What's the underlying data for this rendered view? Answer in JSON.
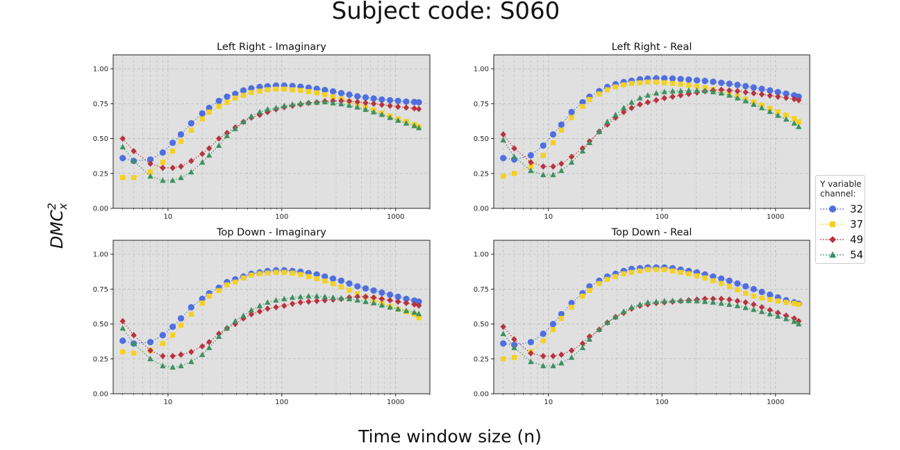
{
  "figure": {
    "title": "Subject code: S060",
    "xlabel": "Time window size (n)",
    "ylabel": "DMC",
    "ylabel_sup": "2",
    "ylabel_sub": "x"
  },
  "legend": {
    "title_line1": "Y variable",
    "title_line2": "channel:",
    "entries": [
      "32",
      "37",
      "49",
      "54"
    ]
  },
  "colors": {
    "s32": "#4f6fe0",
    "s37": "#f5d020",
    "s49": "#b8333f",
    "s54": "#3d9060",
    "panel_bg": "#e0e0e0",
    "grid": "#bdbdbd"
  },
  "chart_data": [
    {
      "type": "scatter",
      "title": "Left Right - Imaginary",
      "xscale": "log",
      "xlim": [
        3.3,
        2000
      ],
      "ylim": [
        0,
        1.1
      ],
      "yticks": [
        "0.00",
        "0.25",
        "0.50",
        "0.75",
        "1.00"
      ],
      "xticks": [
        "10",
        "100",
        "1000"
      ],
      "x": [
        4,
        5,
        7,
        9,
        11,
        13,
        16,
        20,
        23,
        28,
        33,
        39,
        46,
        54,
        64,
        75,
        89,
        105,
        124,
        146,
        172,
        203,
        239,
        282,
        333,
        392,
        462,
        545,
        642,
        757,
        893,
        1050,
        1240,
        1460,
        1600
      ],
      "series": [
        {
          "name": "32",
          "values": [
            0.36,
            0.34,
            0.35,
            0.4,
            0.47,
            0.53,
            0.61,
            0.68,
            0.72,
            0.77,
            0.8,
            0.82,
            0.845,
            0.86,
            0.87,
            0.875,
            0.88,
            0.88,
            0.877,
            0.872,
            0.865,
            0.857,
            0.848,
            0.838,
            0.826,
            0.815,
            0.803,
            0.795,
            0.787,
            0.78,
            0.775,
            0.77,
            0.765,
            0.762,
            0.76
          ]
        },
        {
          "name": "37",
          "values": [
            0.22,
            0.22,
            0.26,
            0.33,
            0.41,
            0.48,
            0.56,
            0.64,
            0.69,
            0.73,
            0.76,
            0.79,
            0.81,
            0.83,
            0.84,
            0.85,
            0.855,
            0.855,
            0.85,
            0.845,
            0.837,
            0.828,
            0.815,
            0.8,
            0.785,
            0.767,
            0.748,
            0.726,
            0.705,
            0.683,
            0.662,
            0.641,
            0.622,
            0.6,
            0.585
          ]
        },
        {
          "name": "49",
          "values": [
            0.5,
            0.41,
            0.32,
            0.29,
            0.29,
            0.3,
            0.34,
            0.39,
            0.43,
            0.5,
            0.54,
            0.58,
            0.62,
            0.65,
            0.67,
            0.69,
            0.71,
            0.725,
            0.735,
            0.745,
            0.755,
            0.76,
            0.768,
            0.77,
            0.77,
            0.768,
            0.763,
            0.756,
            0.75,
            0.742,
            0.735,
            0.728,
            0.722,
            0.716,
            0.712
          ]
        },
        {
          "name": "54",
          "values": [
            0.44,
            0.34,
            0.23,
            0.2,
            0.2,
            0.22,
            0.26,
            0.33,
            0.38,
            0.45,
            0.52,
            0.57,
            0.62,
            0.66,
            0.69,
            0.71,
            0.72,
            0.735,
            0.745,
            0.752,
            0.757,
            0.76,
            0.762,
            0.755,
            0.748,
            0.738,
            0.725,
            0.708,
            0.69,
            0.672,
            0.65,
            0.63,
            0.61,
            0.592,
            0.577
          ]
        }
      ]
    },
    {
      "type": "scatter",
      "title": "Left Right - Real",
      "xscale": "log",
      "xlim": [
        3.3,
        2000
      ],
      "ylim": [
        0,
        1.1
      ],
      "yticks": [
        "0.00",
        "0.25",
        "0.50",
        "0.75",
        "1.00"
      ],
      "xticks": [
        "10",
        "100",
        "1000"
      ],
      "x": [
        4,
        5,
        7,
        9,
        11,
        13,
        16,
        20,
        23,
        28,
        33,
        39,
        46,
        54,
        64,
        75,
        89,
        105,
        124,
        146,
        172,
        203,
        239,
        282,
        333,
        392,
        462,
        545,
        642,
        757,
        893,
        1050,
        1240,
        1460,
        1600
      ],
      "series": [
        {
          "name": "32",
          "values": [
            0.36,
            0.35,
            0.38,
            0.45,
            0.53,
            0.6,
            0.69,
            0.76,
            0.8,
            0.84,
            0.87,
            0.89,
            0.905,
            0.915,
            0.925,
            0.93,
            0.932,
            0.932,
            0.93,
            0.927,
            0.923,
            0.918,
            0.913,
            0.907,
            0.9,
            0.893,
            0.885,
            0.876,
            0.866,
            0.856,
            0.845,
            0.833,
            0.822,
            0.81,
            0.8
          ]
        },
        {
          "name": "37",
          "values": [
            0.23,
            0.25,
            0.3,
            0.38,
            0.47,
            0.56,
            0.65,
            0.73,
            0.78,
            0.82,
            0.85,
            0.87,
            0.885,
            0.895,
            0.9,
            0.905,
            0.905,
            0.9,
            0.895,
            0.89,
            0.883,
            0.875,
            0.865,
            0.853,
            0.838,
            0.822,
            0.804,
            0.784,
            0.762,
            0.74,
            0.716,
            0.692,
            0.668,
            0.643,
            0.62
          ]
        },
        {
          "name": "49",
          "values": [
            0.53,
            0.43,
            0.33,
            0.3,
            0.3,
            0.32,
            0.37,
            0.43,
            0.48,
            0.55,
            0.6,
            0.65,
            0.69,
            0.72,
            0.745,
            0.76,
            0.775,
            0.79,
            0.8,
            0.81,
            0.82,
            0.83,
            0.84,
            0.845,
            0.85,
            0.845,
            0.84,
            0.832,
            0.825,
            0.817,
            0.808,
            0.8,
            0.792,
            0.783,
            0.775
          ]
        },
        {
          "name": "54",
          "values": [
            0.49,
            0.37,
            0.27,
            0.24,
            0.24,
            0.27,
            0.33,
            0.41,
            0.47,
            0.55,
            0.62,
            0.67,
            0.72,
            0.76,
            0.79,
            0.81,
            0.825,
            0.835,
            0.84,
            0.842,
            0.845,
            0.845,
            0.842,
            0.835,
            0.825,
            0.81,
            0.79,
            0.77,
            0.745,
            0.72,
            0.693,
            0.666,
            0.638,
            0.61,
            0.585
          ]
        }
      ]
    },
    {
      "type": "scatter",
      "title": "Top Down - Imaginary",
      "xscale": "log",
      "xlim": [
        3.3,
        2000
      ],
      "ylim": [
        0,
        1.1
      ],
      "yticks": [
        "0.00",
        "0.25",
        "0.50",
        "0.75",
        "1.00"
      ],
      "xticks": [
        "10",
        "100",
        "1000"
      ],
      "x": [
        4,
        5,
        7,
        9,
        11,
        13,
        16,
        20,
        23,
        28,
        33,
        39,
        46,
        54,
        64,
        75,
        89,
        105,
        124,
        146,
        172,
        203,
        239,
        282,
        333,
        392,
        462,
        545,
        642,
        757,
        893,
        1050,
        1240,
        1460,
        1600
      ],
      "series": [
        {
          "name": "32",
          "values": [
            0.38,
            0.36,
            0.37,
            0.42,
            0.48,
            0.54,
            0.62,
            0.68,
            0.72,
            0.76,
            0.8,
            0.82,
            0.84,
            0.86,
            0.87,
            0.88,
            0.885,
            0.885,
            0.88,
            0.875,
            0.865,
            0.855,
            0.84,
            0.825,
            0.81,
            0.79,
            0.77,
            0.755,
            0.74,
            0.725,
            0.71,
            0.695,
            0.68,
            0.668,
            0.66
          ]
        },
        {
          "name": "37",
          "values": [
            0.3,
            0.29,
            0.31,
            0.36,
            0.42,
            0.49,
            0.57,
            0.65,
            0.7,
            0.74,
            0.78,
            0.8,
            0.83,
            0.85,
            0.86,
            0.865,
            0.87,
            0.87,
            0.865,
            0.855,
            0.84,
            0.825,
            0.808,
            0.788,
            0.766,
            0.742,
            0.718,
            0.694,
            0.671,
            0.648,
            0.626,
            0.606,
            0.587,
            0.57,
            0.545
          ]
        },
        {
          "name": "49",
          "values": [
            0.52,
            0.42,
            0.31,
            0.27,
            0.27,
            0.28,
            0.3,
            0.34,
            0.37,
            0.43,
            0.47,
            0.5,
            0.54,
            0.57,
            0.59,
            0.61,
            0.62,
            0.63,
            0.645,
            0.655,
            0.66,
            0.665,
            0.67,
            0.675,
            0.68,
            0.69,
            0.695,
            0.695,
            0.69,
            0.68,
            0.67,
            0.66,
            0.65,
            0.64,
            0.632
          ]
        },
        {
          "name": "54",
          "values": [
            0.47,
            0.36,
            0.25,
            0.2,
            0.19,
            0.2,
            0.23,
            0.28,
            0.33,
            0.41,
            0.47,
            0.52,
            0.56,
            0.6,
            0.63,
            0.655,
            0.67,
            0.68,
            0.69,
            0.695,
            0.7,
            0.7,
            0.695,
            0.69,
            0.685,
            0.68,
            0.67,
            0.66,
            0.65,
            0.635,
            0.62,
            0.607,
            0.595,
            0.583,
            0.573
          ]
        }
      ]
    },
    {
      "type": "scatter",
      "title": "Top Down - Real",
      "xscale": "log",
      "xlim": [
        3.3,
        2000
      ],
      "ylim": [
        0,
        1.1
      ],
      "yticks": [
        "0.00",
        "0.25",
        "0.50",
        "0.75",
        "1.00"
      ],
      "xticks": [
        "10",
        "100",
        "1000"
      ],
      "x": [
        4,
        5,
        7,
        9,
        11,
        13,
        16,
        20,
        23,
        28,
        33,
        39,
        46,
        54,
        64,
        75,
        89,
        105,
        124,
        146,
        172,
        203,
        239,
        282,
        333,
        392,
        462,
        545,
        642,
        757,
        893,
        1050,
        1240,
        1460,
        1600
      ],
      "series": [
        {
          "name": "32",
          "values": [
            0.36,
            0.35,
            0.37,
            0.43,
            0.5,
            0.57,
            0.65,
            0.72,
            0.77,
            0.81,
            0.84,
            0.86,
            0.88,
            0.895,
            0.9,
            0.905,
            0.905,
            0.905,
            0.9,
            0.89,
            0.88,
            0.87,
            0.855,
            0.84,
            0.825,
            0.81,
            0.79,
            0.77,
            0.75,
            0.73,
            0.71,
            0.69,
            0.67,
            0.655,
            0.645
          ]
        },
        {
          "name": "37",
          "values": [
            0.25,
            0.26,
            0.3,
            0.38,
            0.46,
            0.54,
            0.62,
            0.7,
            0.74,
            0.79,
            0.82,
            0.84,
            0.86,
            0.87,
            0.88,
            0.89,
            0.89,
            0.89,
            0.88,
            0.87,
            0.86,
            0.845,
            0.83,
            0.81,
            0.79,
            0.77,
            0.745,
            0.72,
            0.7,
            0.685,
            0.675,
            0.665,
            0.655,
            0.648,
            0.64
          ]
        },
        {
          "name": "49",
          "values": [
            0.48,
            0.39,
            0.29,
            0.27,
            0.27,
            0.28,
            0.31,
            0.36,
            0.41,
            0.46,
            0.51,
            0.55,
            0.58,
            0.61,
            0.63,
            0.64,
            0.65,
            0.655,
            0.66,
            0.665,
            0.67,
            0.675,
            0.68,
            0.68,
            0.68,
            0.675,
            0.665,
            0.655,
            0.64,
            0.62,
            0.6,
            0.58,
            0.56,
            0.54,
            0.52
          ]
        },
        {
          "name": "54",
          "values": [
            0.43,
            0.33,
            0.23,
            0.2,
            0.2,
            0.22,
            0.26,
            0.33,
            0.39,
            0.46,
            0.51,
            0.55,
            0.59,
            0.62,
            0.64,
            0.655,
            0.66,
            0.665,
            0.667,
            0.667,
            0.667,
            0.665,
            0.66,
            0.655,
            0.648,
            0.64,
            0.63,
            0.617,
            0.603,
            0.588,
            0.572,
            0.555,
            0.537,
            0.518,
            0.5
          ]
        }
      ]
    }
  ]
}
